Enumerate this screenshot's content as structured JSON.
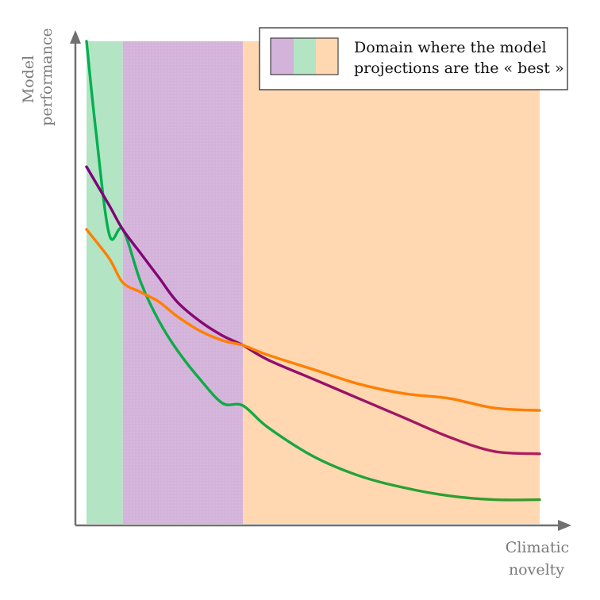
{
  "axes": {
    "y_label_lines": [
      "Model",
      "performance"
    ],
    "x_label_lines": [
      "Climatic",
      "novelty"
    ],
    "axis_color": "#707070"
  },
  "legend": {
    "text_lines": [
      "Domain where the model",
      "projections are the « best »"
    ],
    "swatch_colors": [
      "#d4b3da",
      "#b3e4c4",
      "#ffd8b2"
    ]
  },
  "chart_data": {
    "type": "line",
    "xlabel": "Climatic novelty",
    "ylabel": "Model performance",
    "xlim": [
      0,
      1
    ],
    "ylim": [
      0,
      1
    ],
    "bands": [
      {
        "from": 0.0,
        "to": 0.08,
        "color": "#b3e4c4"
      },
      {
        "from": 0.08,
        "to": 0.345,
        "color": "#d4b3da"
      },
      {
        "from": 0.345,
        "to": 1.0,
        "color": "#ffd8b2"
      }
    ],
    "series": [
      {
        "color_start": "#00b050",
        "color_end": "#3a9a2a",
        "x": [
          0.0,
          0.02,
          0.05,
          0.08,
          0.12,
          0.16,
          0.2,
          0.25,
          0.3,
          0.345,
          0.4,
          0.5,
          0.6,
          0.7,
          0.8,
          0.9,
          1.0
        ],
        "values": [
          1.0,
          0.82,
          0.6,
          0.61,
          0.5,
          0.42,
          0.36,
          0.3,
          0.25,
          0.245,
          0.2,
          0.14,
          0.1,
          0.075,
          0.058,
          0.05,
          0.05
        ]
      },
      {
        "color_start": "#7b007b",
        "color_end": "#b0205a",
        "x": [
          0.0,
          0.05,
          0.08,
          0.12,
          0.16,
          0.2,
          0.25,
          0.3,
          0.345,
          0.4,
          0.5,
          0.6,
          0.7,
          0.8,
          0.9,
          1.0
        ],
        "values": [
          0.74,
          0.66,
          0.61,
          0.56,
          0.51,
          0.46,
          0.42,
          0.39,
          0.37,
          0.34,
          0.3,
          0.26,
          0.22,
          0.18,
          0.15,
          0.145
        ]
      },
      {
        "color_start": "#ff7f00",
        "color_end": "#ff7f00",
        "x": [
          0.0,
          0.05,
          0.08,
          0.12,
          0.16,
          0.2,
          0.25,
          0.3,
          0.345,
          0.4,
          0.5,
          0.6,
          0.7,
          0.8,
          0.9,
          1.0
        ],
        "values": [
          0.61,
          0.55,
          0.5,
          0.48,
          0.46,
          0.43,
          0.4,
          0.38,
          0.37,
          0.35,
          0.32,
          0.29,
          0.27,
          0.26,
          0.24,
          0.235
        ]
      }
    ]
  }
}
